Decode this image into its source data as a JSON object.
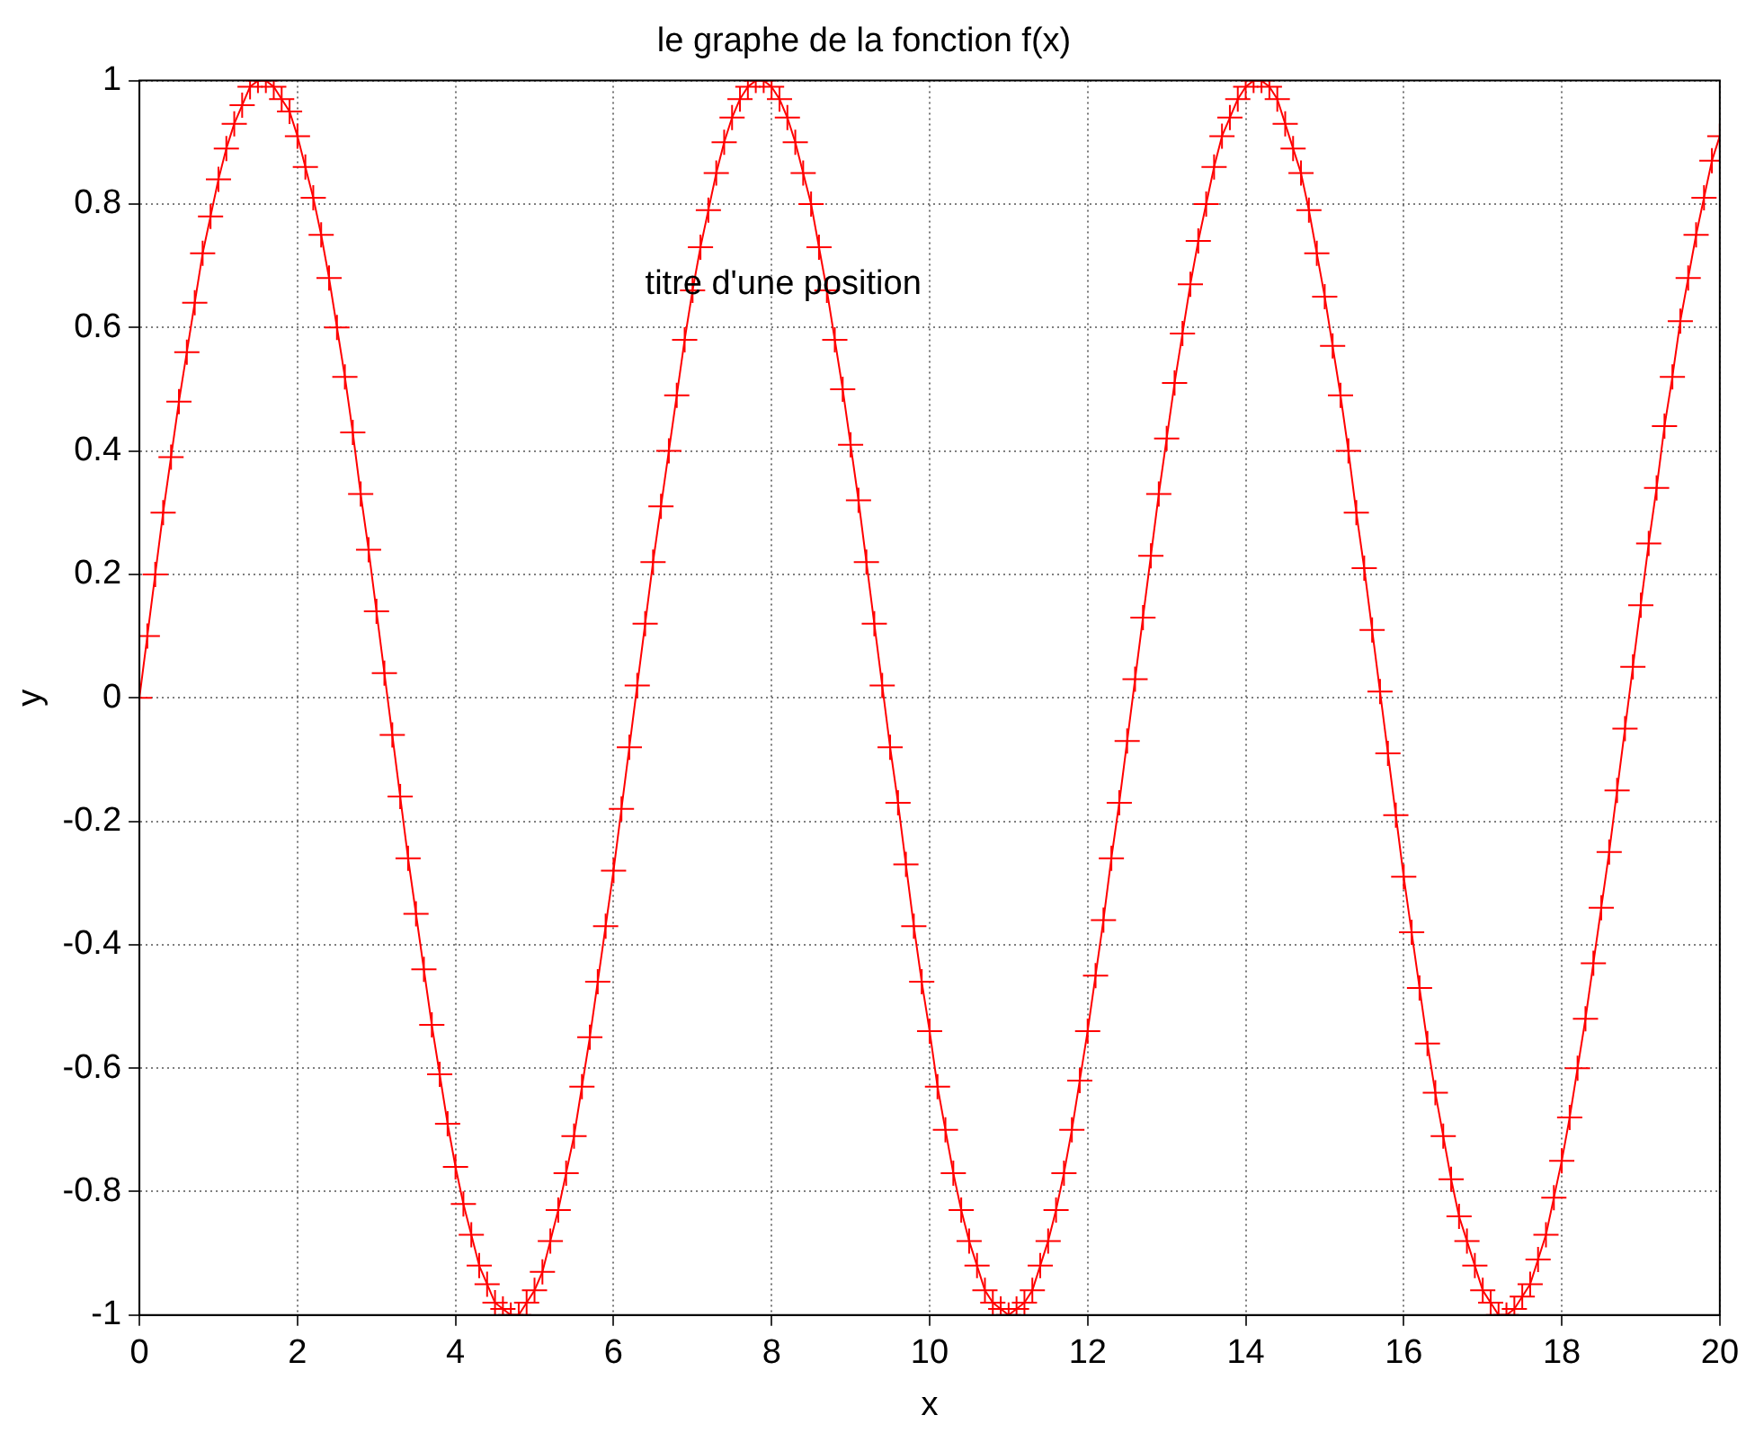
{
  "chart_data": {
    "type": "line",
    "title": "le graphe de la fonction f(x)",
    "xlabel": "x",
    "ylabel": "y",
    "annotations": [
      "titre d'une position"
    ],
    "xlim": [
      0,
      20
    ],
    "ylim": [
      -1,
      1
    ],
    "xticks": [
      0,
      2,
      4,
      6,
      8,
      10,
      12,
      14,
      16,
      18,
      20
    ],
    "yticks": [
      -1,
      -0.8,
      -0.6,
      -0.4,
      -0.2,
      0,
      0.2,
      0.4,
      0.6,
      0.8,
      1
    ],
    "grid": true,
    "marker": "cross",
    "line_style": "solid",
    "legend": false,
    "series": [
      {
        "color": "#ff0000",
        "x": [
          0,
          0.1,
          0.2,
          0.3,
          0.4,
          0.5,
          0.6,
          0.7,
          0.8,
          0.9,
          1,
          1.1,
          1.2,
          1.3,
          1.4,
          1.5,
          1.6,
          1.7,
          1.8,
          1.9,
          2,
          2.1,
          2.2,
          2.3,
          2.4,
          2.5,
          2.6,
          2.7,
          2.8,
          2.9,
          3,
          3.1,
          3.2,
          3.3,
          3.4,
          3.5,
          3.6,
          3.7,
          3.8,
          3.9,
          4,
          4.1,
          4.2,
          4.3,
          4.4,
          4.5,
          4.6,
          4.7,
          4.8,
          4.9,
          5,
          5.1,
          5.2,
          5.3,
          5.4,
          5.5,
          5.6,
          5.7,
          5.8,
          5.9,
          6,
          6.1,
          6.2,
          6.3,
          6.4,
          6.5,
          6.6,
          6.7,
          6.8,
          6.9,
          7,
          7.1,
          7.2,
          7.3,
          7.4,
          7.5,
          7.6,
          7.7,
          7.8,
          7.9,
          8,
          8.1,
          8.2,
          8.3,
          8.4,
          8.5,
          8.6,
          8.7,
          8.8,
          8.9,
          9,
          9.1,
          9.2,
          9.3,
          9.4,
          9.5,
          9.6,
          9.7,
          9.8,
          9.9,
          10,
          10.1,
          10.2,
          10.3,
          10.4,
          10.5,
          10.6,
          10.7,
          10.8,
          10.9,
          11,
          11.1,
          11.2,
          11.3,
          11.4,
          11.5,
          11.6,
          11.7,
          11.8,
          11.9,
          12,
          12.1,
          12.2,
          12.3,
          12.4,
          12.5,
          12.6,
          12.7,
          12.8,
          12.9,
          13,
          13.1,
          13.2,
          13.3,
          13.4,
          13.5,
          13.6,
          13.7,
          13.8,
          13.9,
          14,
          14.1,
          14.2,
          14.3,
          14.4,
          14.5,
          14.6,
          14.7,
          14.8,
          14.9,
          15,
          15.1,
          15.2,
          15.3,
          15.4,
          15.5,
          15.6,
          15.7,
          15.8,
          15.9,
          16,
          16.1,
          16.2,
          16.3,
          16.4,
          16.5,
          16.6,
          16.7,
          16.8,
          16.9,
          17,
          17.1,
          17.2,
          17.3,
          17.4,
          17.5,
          17.6,
          17.7,
          17.8,
          17.9,
          18,
          18.1,
          18.2,
          18.3,
          18.4,
          18.5,
          18.6,
          18.7,
          18.8,
          18.9,
          19,
          19.1,
          19.2,
          19.3,
          19.4,
          19.5,
          19.6,
          19.7,
          19.8,
          19.9,
          20
        ],
        "values": [
          0,
          0.1,
          0.2,
          0.3,
          0.39,
          0.48,
          0.56,
          0.64,
          0.72,
          0.78,
          0.84,
          0.89,
          0.93,
          0.96,
          0.99,
          1,
          1,
          0.99,
          0.97,
          0.95,
          0.91,
          0.86,
          0.81,
          0.75,
          0.68,
          0.6,
          0.52,
          0.43,
          0.33,
          0.24,
          0.14,
          0.04,
          -0.06,
          -0.16,
          -0.26,
          -0.35,
          -0.44,
          -0.53,
          -0.61,
          -0.69,
          -0.76,
          -0.82,
          -0.87,
          -0.92,
          -0.95,
          -0.98,
          -0.99,
          -1,
          -1,
          -0.98,
          -0.96,
          -0.93,
          -0.88,
          -0.83,
          -0.77,
          -0.71,
          -0.63,
          -0.55,
          -0.46,
          -0.37,
          -0.28,
          -0.18,
          -0.08,
          0.02,
          0.12,
          0.22,
          0.31,
          0.4,
          0.49,
          0.58,
          0.66,
          0.73,
          0.79,
          0.85,
          0.9,
          0.94,
          0.97,
          0.99,
          1,
          1,
          0.99,
          0.97,
          0.94,
          0.9,
          0.85,
          0.8,
          0.73,
          0.66,
          0.58,
          0.5,
          0.41,
          0.32,
          0.22,
          0.12,
          0.02,
          -0.08,
          -0.17,
          -0.27,
          -0.37,
          -0.46,
          -0.54,
          -0.63,
          -0.7,
          -0.77,
          -0.83,
          -0.88,
          -0.92,
          -0.96,
          -0.98,
          -0.99,
          -1,
          -0.99,
          -0.98,
          -0.96,
          -0.92,
          -0.88,
          -0.83,
          -0.77,
          -0.7,
          -0.62,
          -0.54,
          -0.45,
          -0.36,
          -0.26,
          -0.17,
          -0.07,
          0.03,
          0.13,
          0.23,
          0.33,
          0.42,
          0.51,
          0.59,
          0.67,
          0.74,
          0.8,
          0.86,
          0.91,
          0.94,
          0.97,
          0.99,
          1,
          1,
          0.99,
          0.97,
          0.93,
          0.89,
          0.85,
          0.79,
          0.72,
          0.65,
          0.57,
          0.49,
          0.4,
          0.3,
          0.21,
          0.11,
          0.01,
          -0.09,
          -0.19,
          -0.29,
          -0.38,
          -0.47,
          -0.56,
          -0.64,
          -0.71,
          -0.78,
          -0.84,
          -0.88,
          -0.92,
          -0.96,
          -0.98,
          -1,
          -1,
          -0.99,
          -0.97,
          -0.95,
          -0.91,
          -0.87,
          -0.81,
          -0.75,
          -0.68,
          -0.6,
          -0.52,
          -0.43,
          -0.34,
          -0.25,
          -0.15,
          -0.05,
          0.05,
          0.15,
          0.25,
          0.34,
          0.44,
          0.52,
          0.61,
          0.68,
          0.75,
          0.81,
          0.87,
          0.91
        ]
      }
    ]
  }
}
